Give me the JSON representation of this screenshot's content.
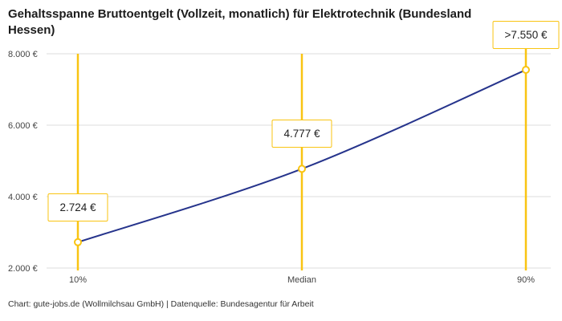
{
  "title": "Gehaltsspanne Bruttoentgelt (Vollzeit, monatlich) für Elektrotechnik (Bundesland Hessen)",
  "footer": "Chart: gute-jobs.de (Wollmilchsau GmbH) | Datenquelle: Bundesagentur für Arbeit",
  "colors": {
    "accent": "#F9C412",
    "line": "#26348C",
    "grid": "#DDDDDD",
    "axis_text": "#444444",
    "title_text": "#1C1C1C"
  },
  "chart_data": {
    "type": "line",
    "title": "Gehaltsspanne Bruttoentgelt (Vollzeit, monatlich) für Elektrotechnik (Bundesland Hessen)",
    "categories": [
      "10%",
      "Median",
      "90%"
    ],
    "values": [
      2724,
      4777,
      7550
    ],
    "point_labels": [
      "2.724 €",
      "4.777 €",
      ">7.550 €"
    ],
    "y_ticks": [
      2000,
      4000,
      6000,
      8000
    ],
    "y_tick_labels": [
      "2.000 €",
      "4.000 €",
      "6.000 €",
      "8.000 €"
    ],
    "ylim": [
      2000,
      8000
    ],
    "xlabel": "",
    "ylabel": "",
    "grid": "horizontal",
    "legend": "none",
    "source": "Bundesagentur für Arbeit"
  }
}
